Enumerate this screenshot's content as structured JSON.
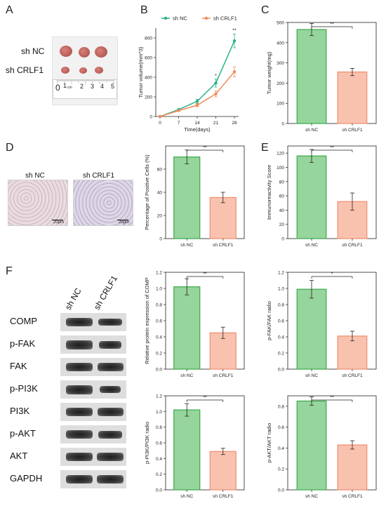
{
  "panels": {
    "A": "A",
    "B": "B",
    "C": "C",
    "D": "D",
    "E": "E",
    "F": "F"
  },
  "panelA": {
    "label_nc": "sh NC",
    "label_crlf1": "sh CRLF1",
    "ruler_digits": [
      "0",
      "1",
      "2",
      "3",
      "4",
      "5"
    ],
    "ruler_unit": "cm"
  },
  "panelD": {
    "label_nc": "sh NC",
    "label_crlf1": "sh CRLF1",
    "scalebar": "20μm"
  },
  "panelF": {
    "col_nc": "sh NC",
    "col_crlf1": "sh CRLF1",
    "rows": [
      "COMP",
      "p-FAK",
      "FAK",
      "p-PI3K",
      "PI3K",
      "p-AKT",
      "AKT",
      "GAPDH"
    ]
  },
  "colors": {
    "green": "#2ab38b",
    "orange": "#f08c5a",
    "green_bar": "#96d59b",
    "green_edge": "#3aa84c",
    "orange_bar": "#f9c2ae",
    "orange_edge": "#ef8d72"
  },
  "chart_data": [
    {
      "id": "tumor-volume",
      "type": "line",
      "title": "",
      "xlabel": "Time(days)",
      "ylabel": "Tumor volume(mm^3)",
      "x": [
        0,
        7,
        14,
        21,
        28
      ],
      "xticks": [
        "0",
        "7",
        "14",
        "21",
        "28"
      ],
      "ylim": [
        0,
        900
      ],
      "yticks": [
        "0",
        "200",
        "400",
        "600",
        "800"
      ],
      "legend": "top",
      "series": [
        {
          "name": "sh NC",
          "color": "#2ab38b",
          "values": [
            0,
            70,
            155,
            340,
            770
          ],
          "err": [
            0,
            10,
            20,
            40,
            70
          ]
        },
        {
          "name": "sh CRLF1",
          "color": "#f08c5a",
          "values": [
            0,
            60,
            115,
            230,
            455
          ],
          "err": [
            0,
            8,
            15,
            30,
            50
          ]
        }
      ],
      "sig": [
        {
          "x": 21,
          "text": "*"
        },
        {
          "x": 28,
          "text": "**"
        }
      ]
    },
    {
      "id": "tumor-weight",
      "type": "bar",
      "ylabel": "Tumor weight(mg)",
      "categories": [
        "sh NC",
        "sh CRLF1"
      ],
      "values": [
        465,
        255
      ],
      "err": [
        30,
        18
      ],
      "ylim": [
        0,
        500
      ],
      "yticks": [
        "0",
        "100",
        "200",
        "300",
        "400",
        "500"
      ],
      "sig": "**"
    },
    {
      "id": "positive-cells",
      "type": "bar",
      "ylabel": "Percentage of Positive Cells (%)",
      "categories": [
        "sh NC",
        "sh CRLF1"
      ],
      "values": [
        70.5,
        35.5
      ],
      "err": [
        6,
        4.5
      ],
      "ylim": [
        0,
        80
      ],
      "yticks": [
        "0",
        "20",
        "40",
        "60"
      ],
      "sig": "**"
    },
    {
      "id": "ir-score",
      "type": "bar",
      "ylabel": "Immunoreactivity Score",
      "categories": [
        "sh NC",
        "sh CRLF1"
      ],
      "values": [
        116,
        52
      ],
      "err": [
        9,
        12
      ],
      "ylim": [
        0,
        130
      ],
      "yticks": [
        "0",
        "20",
        "40",
        "60",
        "80",
        "100",
        "120"
      ],
      "sig": "**"
    },
    {
      "id": "comp",
      "type": "bar",
      "ylabel": "Relative protein expression of COMP",
      "categories": [
        "sh NC",
        "sh CRLF1"
      ],
      "values": [
        1.02,
        0.45
      ],
      "err": [
        0.1,
        0.07
      ],
      "ylim": [
        0,
        1.2
      ],
      "yticks": [
        "0.0",
        "0.2",
        "0.4",
        "0.6",
        "0.8",
        "1.0",
        "1.2"
      ],
      "sig": "**"
    },
    {
      "id": "pfak",
      "type": "bar",
      "ylabel": "p-FAK/FAK  radio",
      "categories": [
        "sh NC",
        "sh CRLF1"
      ],
      "values": [
        0.99,
        0.41
      ],
      "err": [
        0.11,
        0.06
      ],
      "ylim": [
        0,
        1.2
      ],
      "yticks": [
        "0.0",
        "0.2",
        "0.4",
        "0.6",
        "0.8",
        "1.0",
        "1.2"
      ],
      "sig": "*"
    },
    {
      "id": "ppi3k",
      "type": "bar",
      "ylabel": "p-PI3K/PI3K  radio",
      "categories": [
        "sh NC",
        "sh CRLF1"
      ],
      "values": [
        1.02,
        0.49
      ],
      "err": [
        0.08,
        0.04
      ],
      "ylim": [
        0,
        1.2
      ],
      "yticks": [
        "0.0",
        "0.2",
        "0.4",
        "0.6",
        "0.8",
        "1.0",
        "1.2"
      ],
      "sig": "**"
    },
    {
      "id": "pakt",
      "type": "bar",
      "ylabel": "p-AKT/AKT  radio",
      "categories": [
        "sh NC",
        "sh CRLF1"
      ],
      "values": [
        0.85,
        0.43
      ],
      "err": [
        0.04,
        0.04
      ],
      "ylim": [
        0,
        0.9
      ],
      "yticks": [
        "0.0",
        "0.2",
        "0.4",
        "0.6",
        "0.8"
      ],
      "sig": "**"
    }
  ]
}
